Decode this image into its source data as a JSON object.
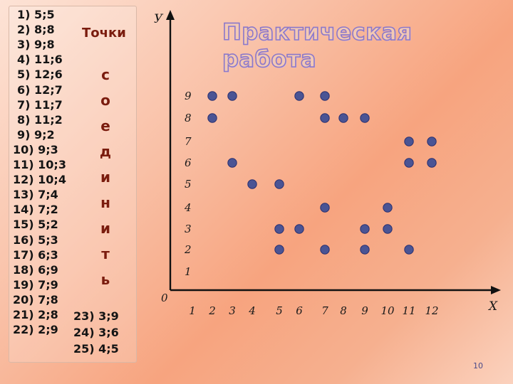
{
  "title": "Практическая работа",
  "points_header": "Точки",
  "instruction_letters": [
    "с",
    "о",
    "е",
    "д",
    "и",
    "н",
    "и",
    "т",
    "ь"
  ],
  "points": [
    {
      "label": "1) 5;5",
      "x": 5,
      "y": 5
    },
    {
      "label": "2) 8;8",
      "x": 8,
      "y": 8
    },
    {
      "label": "3) 9;8",
      "x": 9,
      "y": 8
    },
    {
      "label": "4) 11;6",
      "x": 11,
      "y": 6
    },
    {
      "label": "5) 12;6",
      "x": 12,
      "y": 6
    },
    {
      "label": "6) 12;7",
      "x": 12,
      "y": 7
    },
    {
      "label": "7) 11;7",
      "x": 11,
      "y": 7
    },
    {
      "label": "8) 11;2",
      "x": 11,
      "y": 2
    },
    {
      "label": "9) 9;2",
      "x": 9,
      "y": 2
    },
    {
      "label": "10) 9;3",
      "x": 9,
      "y": 3
    },
    {
      "label": "11) 10;3",
      "x": 10,
      "y": 3
    },
    {
      "label": "12) 10;4",
      "x": 10,
      "y": 4
    },
    {
      "label": "13) 7;4",
      "x": 7,
      "y": 4
    },
    {
      "label": "14) 7;2",
      "x": 7,
      "y": 2
    },
    {
      "label": "15) 5;2",
      "x": 5,
      "y": 2
    },
    {
      "label": "16) 5;3",
      "x": 5,
      "y": 3
    },
    {
      "label": "17) 6;3",
      "x": 6,
      "y": 3
    },
    {
      "label": "18) 6;9",
      "x": 6,
      "y": 9
    },
    {
      "label": "19) 7;9",
      "x": 7,
      "y": 9
    },
    {
      "label": "20) 7;8",
      "x": 7,
      "y": 8
    },
    {
      "label": "21) 2;8",
      "x": 2,
      "y": 8
    },
    {
      "label": "22) 2;9",
      "x": 2,
      "y": 9
    },
    {
      "label": "23) 3;9",
      "x": 3,
      "y": 9
    },
    {
      "label": "24) 3;6",
      "x": 3,
      "y": 6
    },
    {
      "label": "25) 4;5",
      "x": 4,
      "y": 5
    }
  ],
  "axes": {
    "x_label": "X",
    "y_label": "У",
    "origin_label": "0",
    "x_ticks": [
      "1",
      "2",
      "3",
      "4",
      "5",
      "6",
      "7",
      "8",
      "9",
      "10",
      "11",
      "12"
    ],
    "y_ticks": [
      "1",
      "2",
      "3",
      "4",
      "5",
      "6",
      "7",
      "8",
      "9"
    ]
  },
  "colors": {
    "dot": "#4a5494",
    "dot_stroke": "#2a3070",
    "axis": "#111111",
    "letters": "#7a1c0e",
    "title_outline": "#8c78c9"
  },
  "slide_number": "10"
}
